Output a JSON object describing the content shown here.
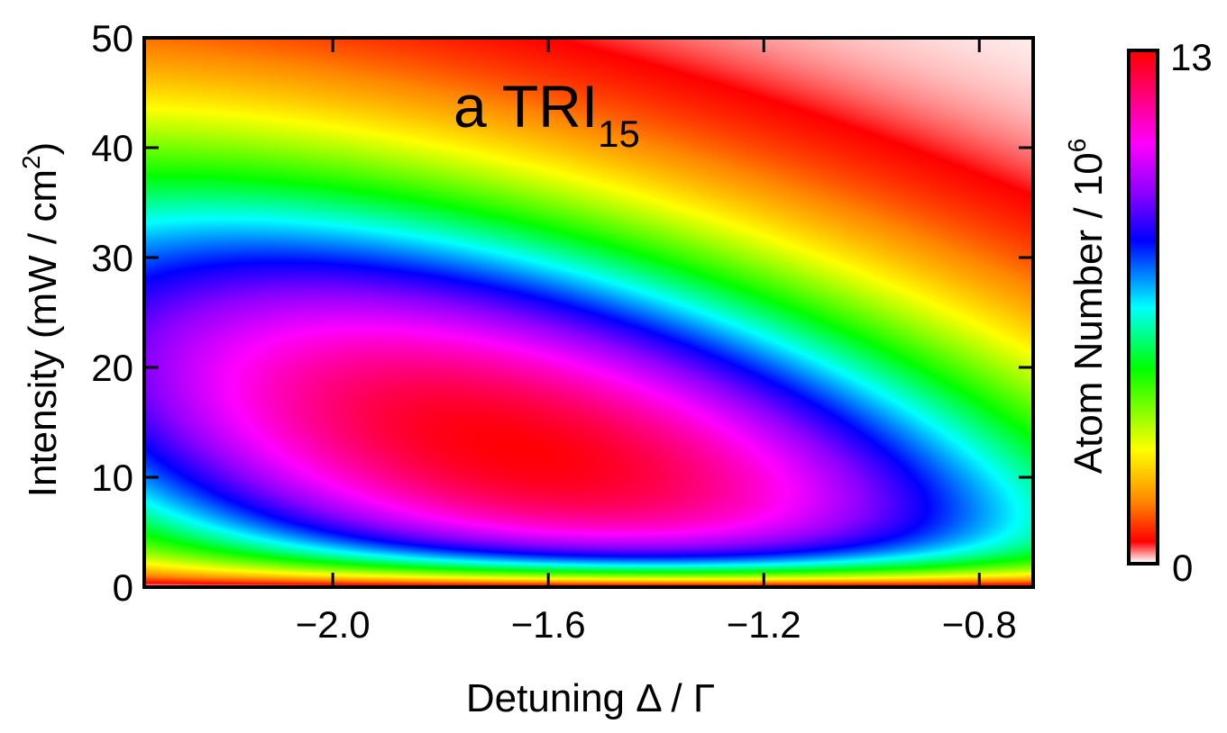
{
  "chart_data": {
    "type": "heatmap",
    "panel_label": "a TRI",
    "panel_label_subscript": "15",
    "xlabel": "Detuning Δ / Γ",
    "ylabel": "Intensity (mW / cm",
    "ylabel_sup": "2",
    "ylabel_end": ")",
    "xlim": [
      -2.35,
      -0.7
    ],
    "ylim": [
      0,
      50
    ],
    "x_ticks": [
      -2.0,
      -1.6,
      -1.2,
      -0.8
    ],
    "x_tick_labels": [
      "−2.0",
      "−1.6",
      "−1.2",
      "−0.8"
    ],
    "y_ticks": [
      0,
      10,
      20,
      30,
      40,
      50
    ],
    "y_tick_labels": [
      "0",
      "10",
      "20",
      "30",
      "40",
      "50"
    ],
    "colorbar": {
      "label": "Atom Number / 10",
      "label_sup": "6",
      "min": 0,
      "max": 13,
      "min_label": "0",
      "max_label": "13",
      "colormap": [
        "#ffffff",
        "#ff0000",
        "#ff00ff",
        "#0000ff",
        "#00ffff",
        "#00ff00",
        "#ffff00",
        "#ff6600"
      ]
    },
    "peak": {
      "x": -1.65,
      "y": 12,
      "value": 13
    },
    "grid": false
  }
}
